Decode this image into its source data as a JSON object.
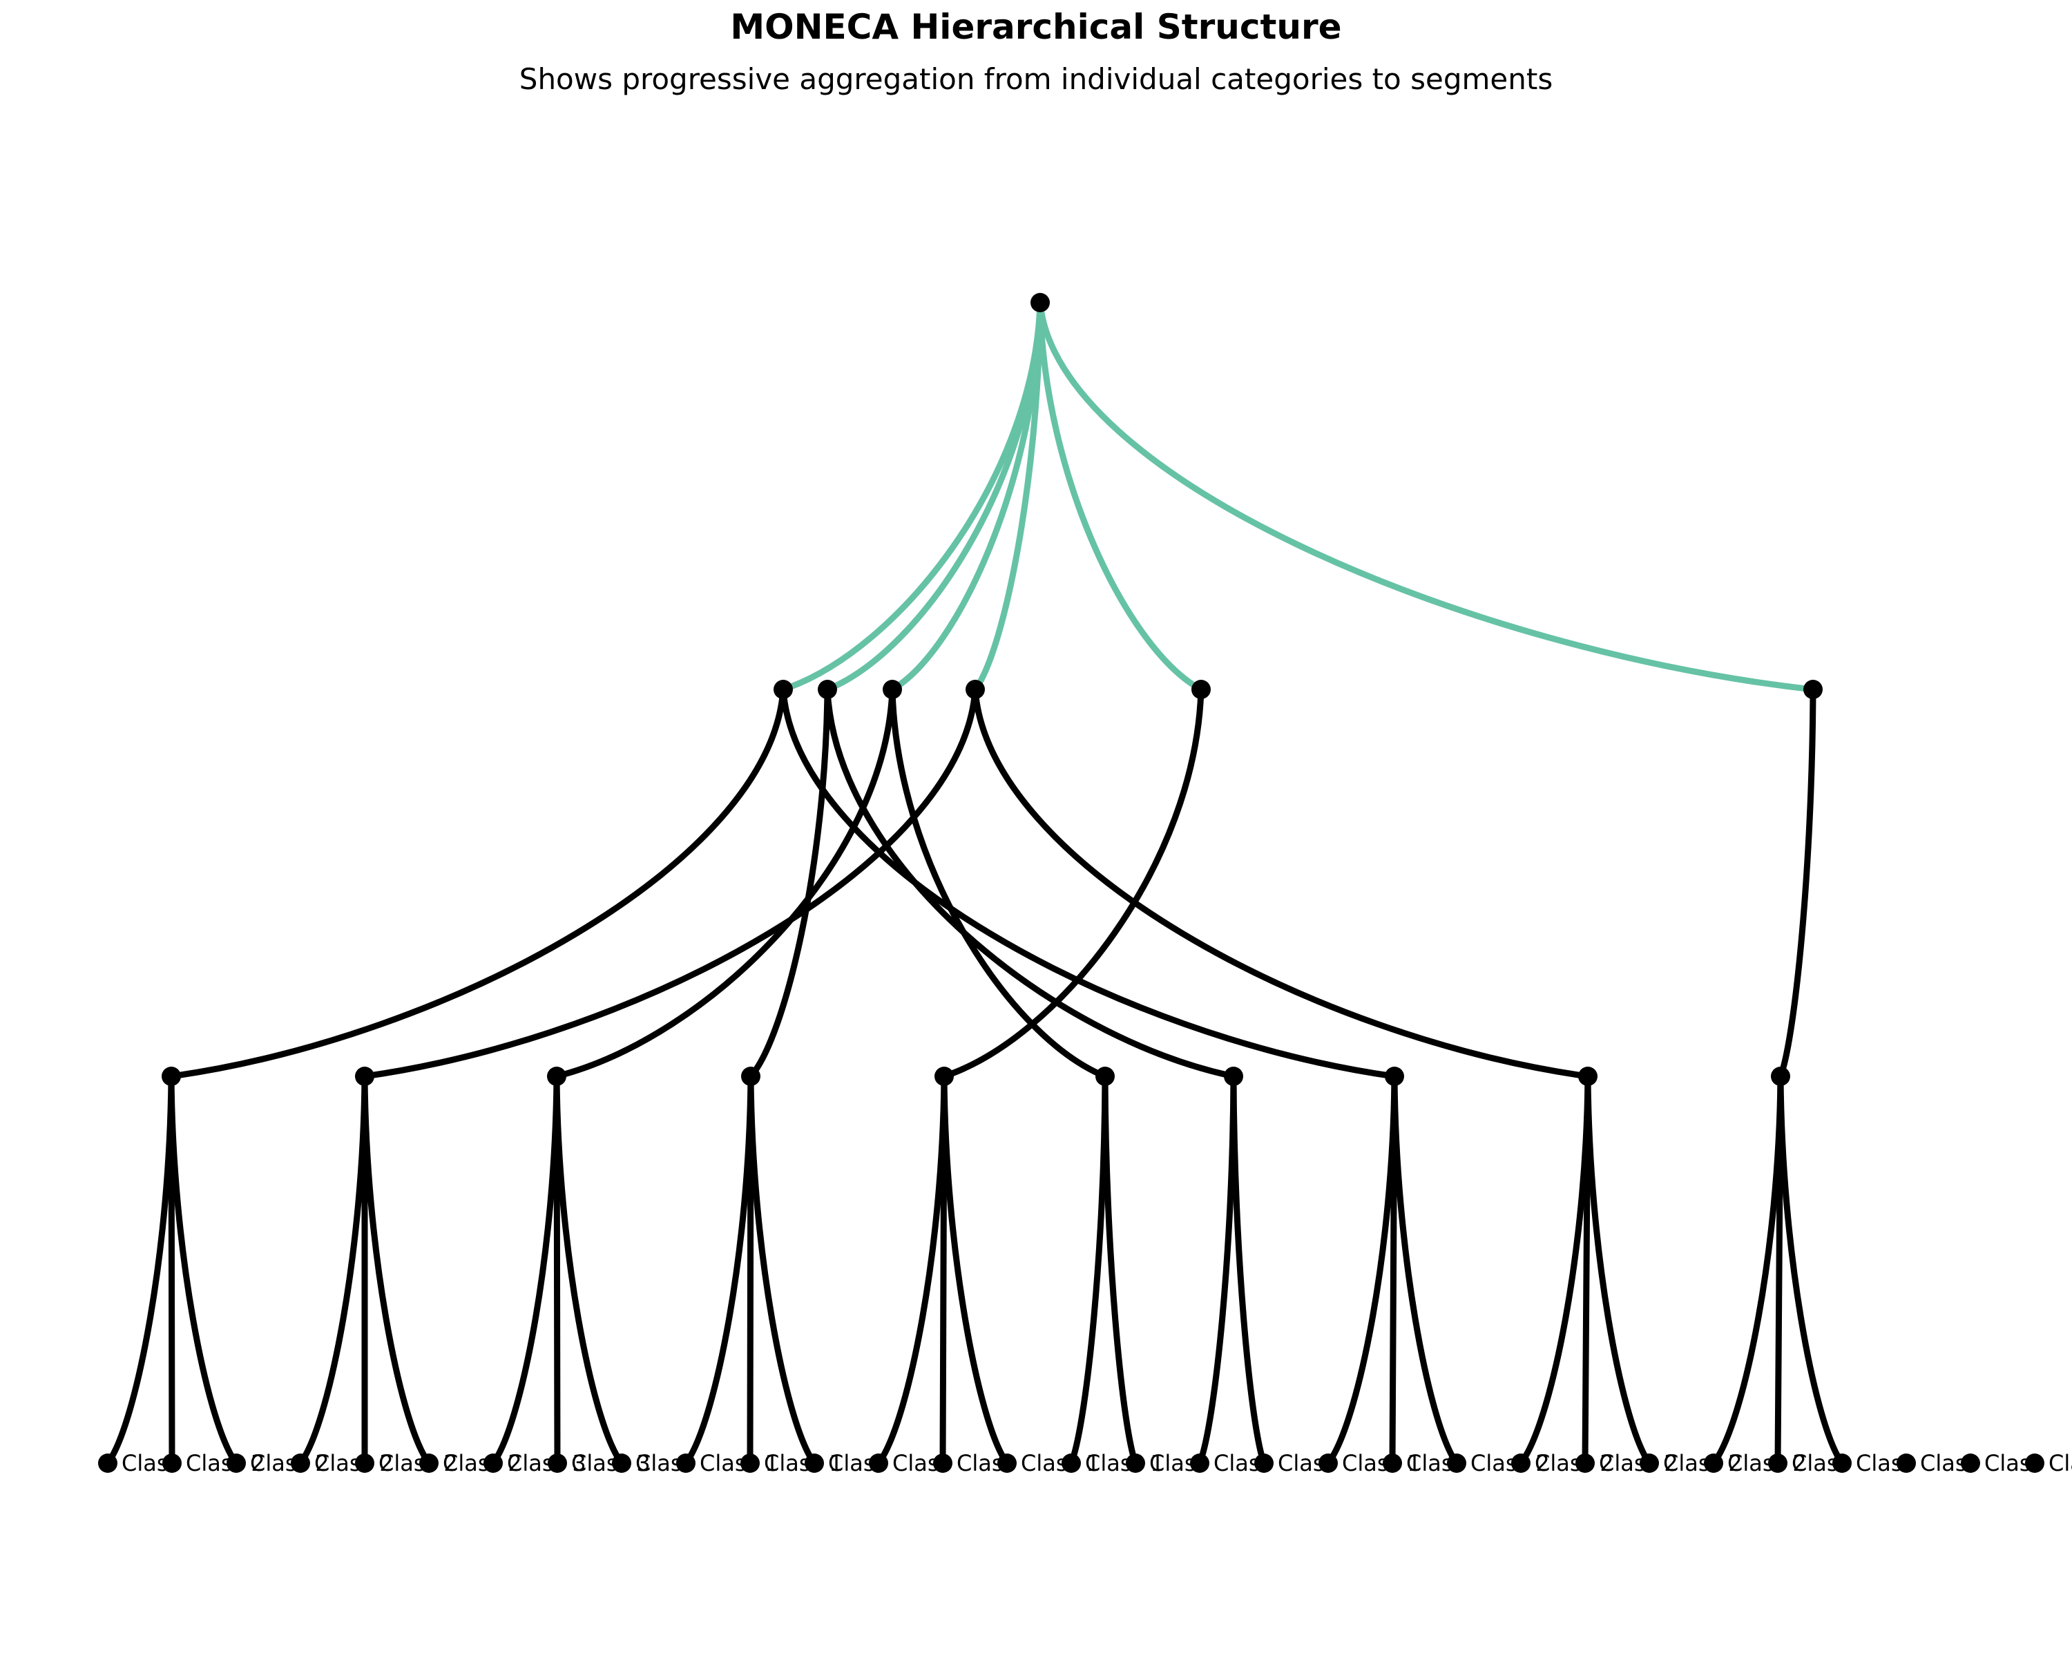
{
  "title": "MONECA Hierarchical Structure",
  "subtitle": "Shows progressive aggregation from individual categories to segments",
  "colors": {
    "root_edge": "#66c2a5",
    "edge": "#000000",
    "node": "#000000"
  },
  "leaf_labels": [
    "Class",
    "Class 2",
    "Class 2",
    "Class 2",
    "Class 2",
    "Class 2",
    "Class 3",
    "Class 3",
    "Class",
    "Class 1",
    "Class 1",
    "Class",
    "Class",
    "Class",
    "Class 1",
    "Class 1",
    "Class",
    "Class",
    "Class",
    "Class 1",
    "Class",
    "Class 2",
    "Class 2",
    "Class 2",
    "Class 2",
    "Class 2",
    "Class",
    "Class",
    "Class",
    "Class",
    "Class 1",
    "Class"
  ]
}
